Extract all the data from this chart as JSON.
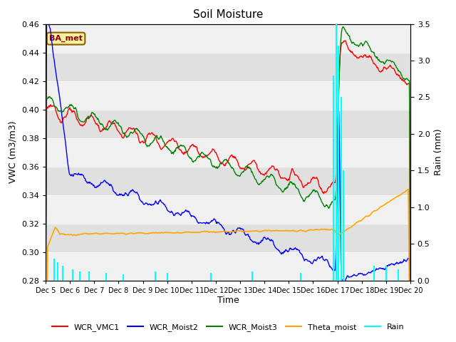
{
  "title": "Soil Moisture",
  "ylabel_left": "VWC (m3/m3)",
  "ylabel_right": "Rain (mm)",
  "xlabel": "Time",
  "annotation": "BA_met",
  "ylim_left": [
    0.28,
    0.46
  ],
  "ylim_right": [
    0.0,
    3.5
  ],
  "legend_entries": [
    "WCR_VMC1",
    "WCR_Moist2",
    "WCR_Moist3",
    "Theta_moist",
    "Rain"
  ],
  "xtick_labels": [
    "Dec 5",
    "Dec 6",
    "Dec 7",
    "Dec 8",
    "Dec 9",
    "Dec 10",
    "Dec 11",
    "Dec 12",
    "Dec 13",
    "Dec 14",
    "Dec 15",
    "Dec 16",
    "Dec 17",
    "Dec 18",
    "Dec 19",
    "Dec 20"
  ],
  "ytick_labels": [
    "0.28",
    "0.30",
    "0.32",
    "0.34",
    "0.36",
    "0.38",
    "0.40",
    "0.42",
    "0.44",
    "0.46"
  ],
  "ytick_vals": [
    0.28,
    0.3,
    0.32,
    0.34,
    0.36,
    0.38,
    0.4,
    0.42,
    0.44,
    0.46
  ],
  "n_days": 15,
  "spike_day": 12.0,
  "band_colors": [
    "#f0f0f0",
    "#e0e0e0"
  ]
}
